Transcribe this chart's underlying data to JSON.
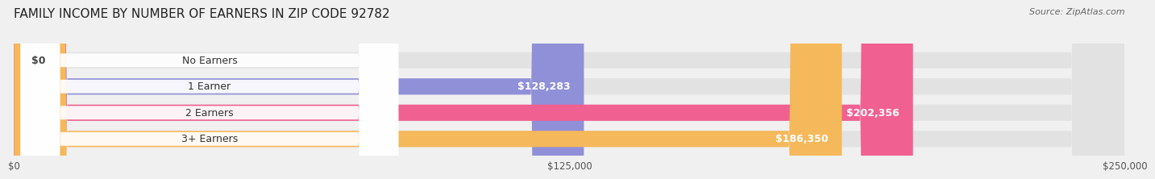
{
  "title": "FAMILY INCOME BY NUMBER OF EARNERS IN ZIP CODE 92782",
  "source": "Source: ZipAtlas.com",
  "categories": [
    "No Earners",
    "1 Earner",
    "2 Earners",
    "3+ Earners"
  ],
  "values": [
    0,
    128283,
    202356,
    186350
  ],
  "labels": [
    "$0",
    "$128,283",
    "$202,356",
    "$186,350"
  ],
  "bar_colors": [
    "#5ecfcf",
    "#9090d8",
    "#f06090",
    "#f5b85a"
  ],
  "bg_color": "#f0f0f0",
  "bar_bg_color": "#e2e2e2",
  "xlim": [
    0,
    250000
  ],
  "xticks": [
    0,
    125000,
    250000
  ],
  "xtick_labels": [
    "$0",
    "$125,000",
    "$250,000"
  ],
  "title_fontsize": 11,
  "label_fontsize": 9,
  "bar_height": 0.62
}
